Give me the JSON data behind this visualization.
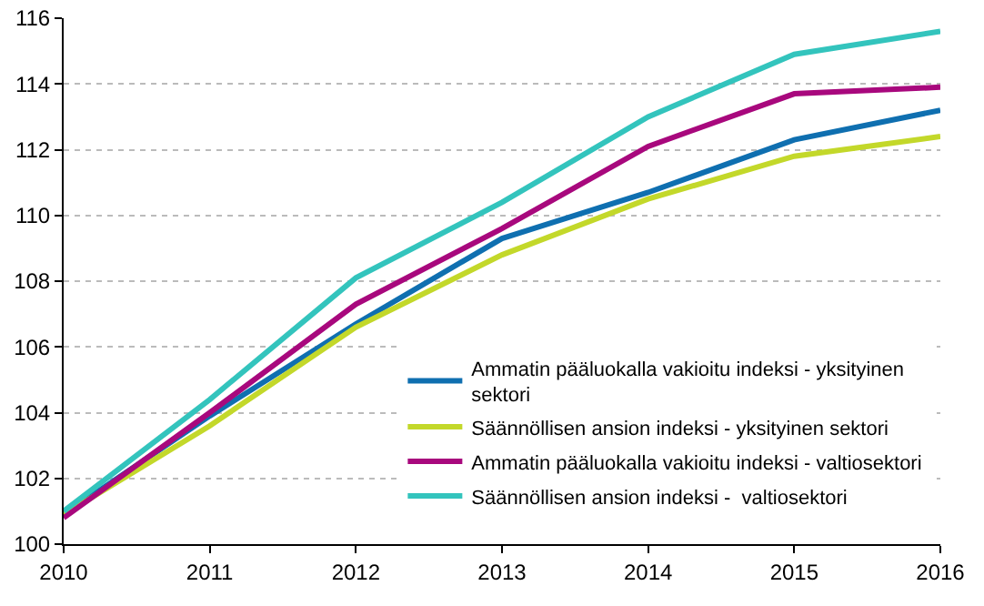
{
  "chart_data": {
    "type": "line",
    "x": [
      2010,
      2011,
      2012,
      2013,
      2014,
      2015,
      2016
    ],
    "xlim": [
      2010,
      2016
    ],
    "xticks": [
      2010,
      2011,
      2012,
      2013,
      2014,
      2015,
      2016
    ],
    "ylim": [
      100,
      116
    ],
    "yticks": [
      100,
      102,
      104,
      106,
      108,
      110,
      112,
      114,
      116
    ],
    "grid": "y",
    "legend": "bottom right",
    "marker": "none",
    "line_style": "solid",
    "series": [
      {
        "name": "Ammatin pääluokalla vakioitu indeksi - yksityinen sektori",
        "color": "#0f6fb0",
        "values": [
          100.9,
          103.9,
          106.7,
          109.3,
          110.7,
          112.3,
          113.2
        ]
      },
      {
        "name": "Säännöllisen ansion indeksi - yksityinen sektori",
        "color": "#c3d82a",
        "values": [
          100.9,
          103.6,
          106.6,
          108.8,
          110.5,
          111.8,
          112.4
        ]
      },
      {
        "name": "Ammatin pääluokalla vakioitu indeksi - valtiosektori",
        "color": "#a8087d",
        "values": [
          100.8,
          104.0,
          107.3,
          109.6,
          112.1,
          113.7,
          113.9
        ]
      },
      {
        "name": "Säännöllisen ansion indeksi -  valtiosektori",
        "color": "#33c4bd",
        "values": [
          101.0,
          104.4,
          108.1,
          110.4,
          113.0,
          114.9,
          115.6
        ]
      }
    ]
  }
}
